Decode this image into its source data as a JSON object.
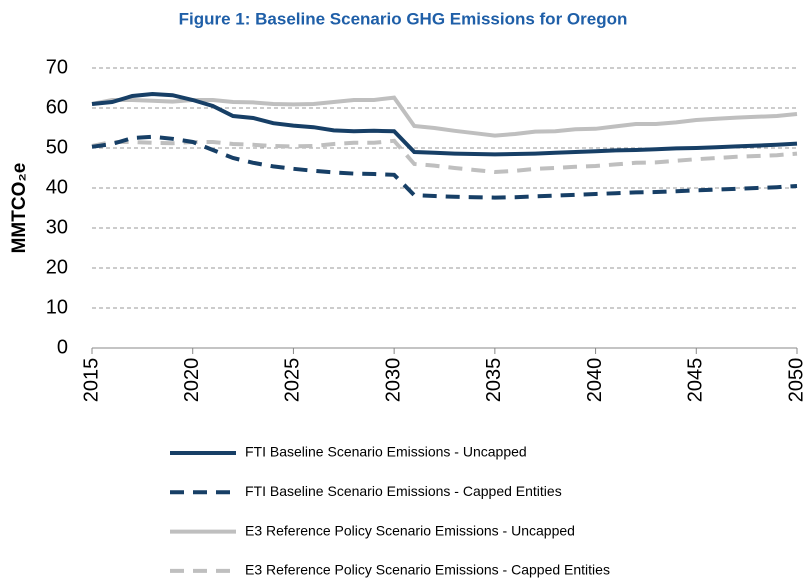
{
  "chart_data": {
    "type": "line",
    "title": "Figure 1: Baseline Scenario GHG Emissions for Oregon",
    "y_label": "MMTCO₂e",
    "x": [
      2015,
      2016,
      2017,
      2018,
      2019,
      2020,
      2021,
      2022,
      2023,
      2024,
      2025,
      2026,
      2027,
      2028,
      2029,
      2030,
      2031,
      2032,
      2033,
      2034,
      2035,
      2036,
      2037,
      2038,
      2039,
      2040,
      2041,
      2042,
      2043,
      2044,
      2045,
      2046,
      2047,
      2048,
      2049,
      2050
    ],
    "xlim": [
      2015,
      2050
    ],
    "xticks": [
      2015,
      2020,
      2025,
      2030,
      2035,
      2040,
      2045,
      2050
    ],
    "ylim": [
      0,
      70
    ],
    "yticks": [
      0,
      10,
      20,
      30,
      40,
      50,
      60,
      70
    ],
    "grid": true,
    "series": [
      {
        "name": "FTI Baseline Scenario Emissions - Uncapped",
        "color": "#173f66",
        "style": "solid",
        "values": [
          61,
          61.5,
          63,
          63.5,
          63.2,
          62,
          60.5,
          58,
          57.5,
          56.2,
          55.6,
          55.2,
          54.4,
          54.2,
          54.3,
          54.2,
          49,
          48.8,
          48.6,
          48.5,
          48.4,
          48.5,
          48.6,
          48.8,
          49,
          49.2,
          49.4,
          49.5,
          49.7,
          49.9,
          50,
          50.2,
          50.4,
          50.6,
          50.8,
          51.1
        ]
      },
      {
        "name": "FTI Baseline Scenario Emissions - Capped Entities",
        "color": "#173f66",
        "style": "dashed",
        "values": [
          50.3,
          51,
          52.5,
          52.8,
          52.3,
          51.5,
          49.5,
          47.5,
          46.3,
          45.4,
          44.8,
          44.3,
          43.9,
          43.6,
          43.5,
          43.3,
          38.2,
          38,
          37.8,
          37.7,
          37.6,
          37.7,
          37.9,
          38.1,
          38.3,
          38.5,
          38.7,
          38.9,
          39,
          39.2,
          39.4,
          39.6,
          39.8,
          40,
          40.2,
          40.5
        ]
      },
      {
        "name": "E3 Reference Policy Scenario Emissions - Uncapped",
        "color": "#bfbfbf",
        "style": "solid",
        "values": [
          61,
          62,
          62,
          61.8,
          61.6,
          62,
          62,
          61.5,
          61.4,
          61,
          60.9,
          61,
          61.5,
          62,
          62,
          62.6,
          55.5,
          55,
          54.3,
          53.7,
          53.1,
          53.5,
          54.1,
          54.2,
          54.7,
          54.8,
          55.4,
          56,
          56,
          56.4,
          57,
          57.3,
          57.6,
          57.8,
          58,
          58.5
        ]
      },
      {
        "name": "E3 Reference Policy Scenario Emissions - Capped Entities",
        "color": "#bfbfbf",
        "style": "dashed",
        "values": [
          50.5,
          51.5,
          51.5,
          51.3,
          51.2,
          51.5,
          51.5,
          51,
          50.8,
          50.5,
          50.4,
          50.5,
          51,
          51.3,
          51.3,
          51.8,
          46,
          45.6,
          45,
          44.5,
          44,
          44.3,
          44.8,
          45,
          45.3,
          45.5,
          45.9,
          46.3,
          46.4,
          46.8,
          47.2,
          47.5,
          47.8,
          48,
          48.2,
          48.6
        ]
      }
    ]
  }
}
